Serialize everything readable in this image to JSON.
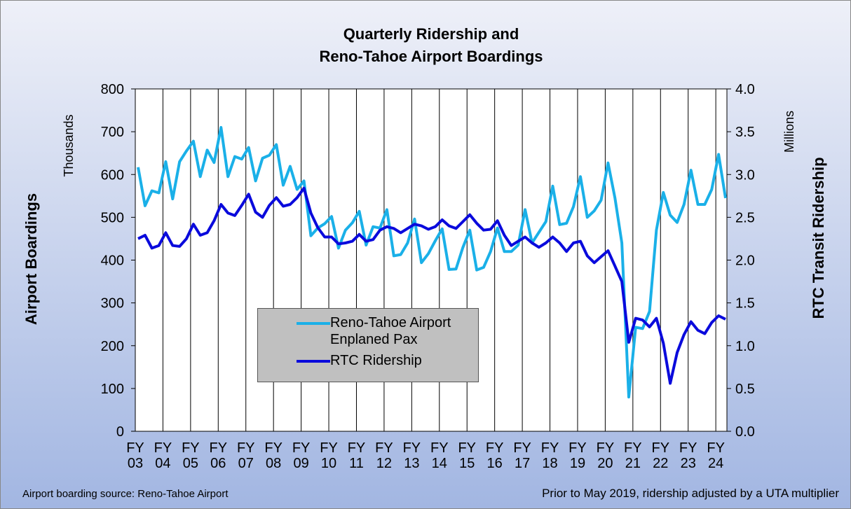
{
  "chart_data": {
    "type": "line",
    "title_lines": [
      "Quarterly Ridership and",
      "Reno-Tahoe Airport Boardings"
    ],
    "y_label": "Airport Boardings",
    "y_unit": "Thousands",
    "y2_label": "RTC Transit Ridership",
    "y2_unit": "Millions",
    "notes": [
      "Airport boarding source: Reno-Tahoe Airport",
      "Prior to May 2019, ridership adjusted by a UTA multiplier"
    ],
    "categories": [
      "FY 03",
      null,
      null,
      null,
      "FY 04",
      null,
      null,
      null,
      "FY 05",
      null,
      null,
      null,
      "FY 06",
      null,
      null,
      null,
      "FY 07",
      null,
      null,
      null,
      "FY 08",
      null,
      null,
      null,
      "FY 09",
      null,
      null,
      null,
      "FY 10",
      null,
      null,
      null,
      "FY 11",
      null,
      null,
      null,
      "FY 12",
      null,
      null,
      null,
      "FY 13",
      null,
      null,
      null,
      "FY 14",
      null,
      null,
      null,
      "FY 15",
      null,
      null,
      null,
      "FY 16",
      null,
      null,
      null,
      "FY 17",
      null,
      null,
      null,
      "FY 18",
      null,
      null,
      null,
      "FY 19",
      null,
      null,
      null,
      "FY 20",
      null,
      null,
      null,
      "FY 21",
      null,
      null,
      null,
      "FY 22",
      null,
      null,
      null,
      "FY 23",
      null,
      null,
      null,
      "FY 24",
      null
    ],
    "series": [
      {
        "name": "Reno-Tahoe Airport Enplaned Pax",
        "color": "#1ab0e8",
        "values": [
          617,
          527,
          562,
          557,
          630,
          543,
          630,
          655,
          678,
          595,
          657,
          628,
          710,
          595,
          642,
          636,
          663,
          585,
          638,
          645,
          670,
          575,
          619,
          565,
          585,
          457,
          475,
          485,
          502,
          428,
          470,
          487,
          514,
          435,
          478,
          475,
          518,
          410,
          413,
          440,
          496,
          394,
          415,
          445,
          473,
          378,
          379,
          430,
          470,
          377,
          383,
          420,
          475,
          420,
          420,
          435,
          518,
          440,
          465,
          490,
          573,
          483,
          486,
          525,
          595,
          500,
          515,
          540,
          627,
          545,
          440,
          80,
          243,
          240,
          280,
          470,
          558,
          505,
          488,
          530,
          610,
          530,
          530,
          565,
          647,
          545
        ]
      },
      {
        "name": "RTC Ridership",
        "color": "#0a0adc",
        "axis": "y2",
        "values": [
          2.25,
          2.29,
          2.14,
          2.17,
          2.32,
          2.17,
          2.16,
          2.25,
          2.42,
          2.29,
          2.32,
          2.46,
          2.65,
          2.55,
          2.52,
          2.64,
          2.77,
          2.56,
          2.5,
          2.64,
          2.73,
          2.63,
          2.65,
          2.73,
          2.84,
          2.55,
          2.38,
          2.27,
          2.27,
          2.19,
          2.2,
          2.22,
          2.3,
          2.22,
          2.24,
          2.35,
          2.39,
          2.37,
          2.32,
          2.37,
          2.42,
          2.4,
          2.36,
          2.39,
          2.47,
          2.4,
          2.37,
          2.45,
          2.53,
          2.43,
          2.35,
          2.36,
          2.46,
          2.29,
          2.17,
          2.22,
          2.27,
          2.2,
          2.15,
          2.2,
          2.27,
          2.2,
          2.1,
          2.2,
          2.22,
          2.05,
          1.97,
          2.04,
          2.11,
          1.93,
          1.75,
          1.04,
          1.32,
          1.3,
          1.22,
          1.32,
          1.03,
          0.56,
          0.92,
          1.13,
          1.28,
          1.18,
          1.14,
          1.27,
          1.35,
          1.31
        ]
      }
    ],
    "ylim": [
      0,
      800
    ],
    "yticks": [
      0,
      100,
      200,
      300,
      400,
      500,
      600,
      700,
      800
    ],
    "y2lim": [
      0,
      4
    ],
    "y2ticks": [
      {
        "value": 0,
        "label": "0.0"
      },
      0.5,
      {
        "value": 1,
        "label": "1.0"
      },
      1.5,
      {
        "value": 2,
        "label": "2.0"
      },
      2.5,
      {
        "value": 3,
        "label": "3.0"
      },
      3.5,
      {
        "value": 4,
        "label": "4.0"
      }
    ],
    "grid": "x"
  }
}
